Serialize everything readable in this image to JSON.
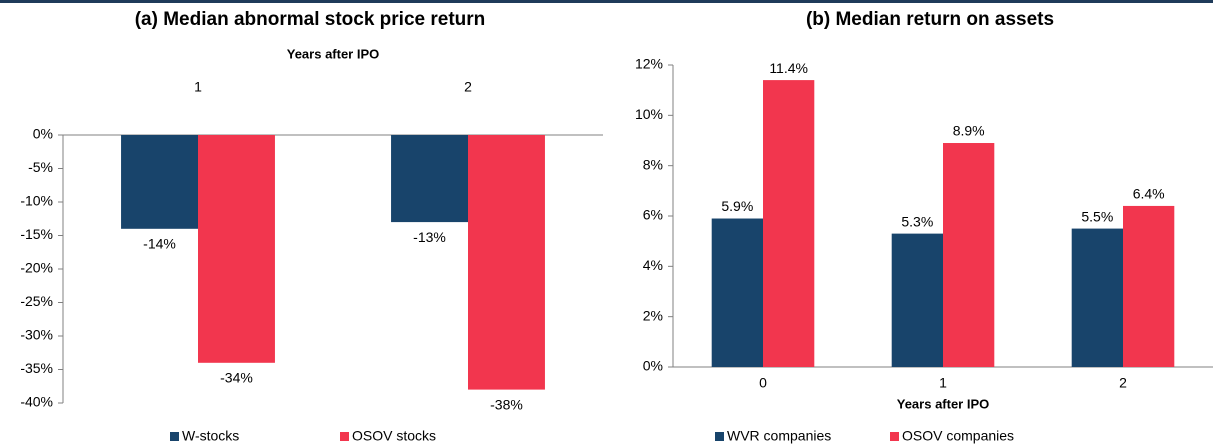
{
  "chart_data": [
    {
      "type": "bar",
      "title": "(a)  Median abnormal stock price return",
      "x_label": "Years after IPO",
      "categories": [
        "1",
        "2"
      ],
      "series": [
        {
          "name": "W-stocks",
          "color": "#18446b",
          "values": [
            -14,
            -13
          ],
          "value_labels": [
            "-14%",
            "-13%"
          ]
        },
        {
          "name": "OSOV stocks",
          "color": "#f2364e",
          "values": [
            -34,
            -38
          ],
          "value_labels": [
            "-34%",
            "-38%"
          ]
        }
      ],
      "ylim": [
        -40,
        0
      ],
      "yticks": [
        {
          "value": 0,
          "label": "0%"
        },
        {
          "value": -5,
          "label": "-5%"
        },
        {
          "value": -10,
          "label": "-10%"
        },
        {
          "value": -15,
          "label": "-15%"
        },
        {
          "value": -20,
          "label": "-20%"
        },
        {
          "value": -25,
          "label": "-25%"
        },
        {
          "value": -30,
          "label": "-30%"
        },
        {
          "value": -35,
          "label": "-35%"
        },
        {
          "value": -40,
          "label": "-40%"
        }
      ],
      "legend": "bottom"
    },
    {
      "type": "bar",
      "title": "(b)  Median return on assets",
      "x_label": "Years after IPO",
      "categories": [
        "0",
        "1",
        "2"
      ],
      "series": [
        {
          "name": "WVR companies",
          "color": "#18446b",
          "values": [
            5.9,
            5.3,
            5.5
          ],
          "value_labels": [
            "5.9%",
            "5.3%",
            "5.5%"
          ]
        },
        {
          "name": "OSOV companies",
          "color": "#f2364e",
          "values": [
            11.4,
            8.9,
            6.4
          ],
          "value_labels": [
            "11.4%",
            "8.9%",
            "6.4%"
          ]
        }
      ],
      "ylim": [
        0,
        12
      ],
      "yticks": [
        {
          "value": 0,
          "label": "0%"
        },
        {
          "value": 2,
          "label": "2%"
        },
        {
          "value": 4,
          "label": "4%"
        },
        {
          "value": 6,
          "label": "6%"
        },
        {
          "value": 8,
          "label": "8%"
        },
        {
          "value": 10,
          "label": "10%"
        },
        {
          "value": 12,
          "label": "12%"
        }
      ],
      "legend": "bottom"
    }
  ]
}
